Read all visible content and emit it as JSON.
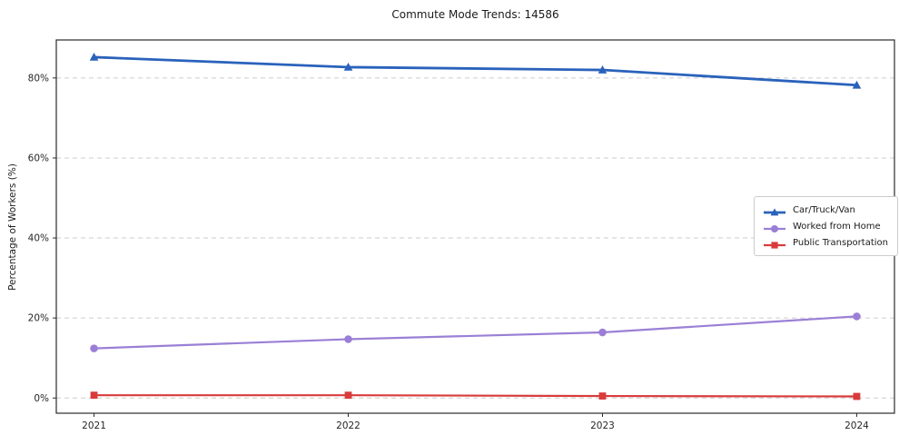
{
  "chart_data": {
    "type": "line",
    "title": "Commute Mode Trends: 14586",
    "xlabel": "",
    "ylabel": "Percentage of Workers (%)",
    "x": [
      2021,
      2022,
      2023,
      2024
    ],
    "yticks": [
      0,
      20,
      40,
      60,
      80
    ],
    "ytick_labels": [
      "0%",
      "20%",
      "40%",
      "60%",
      "80%"
    ],
    "ylim": [
      -3.8,
      89.5
    ],
    "grid": true,
    "grid_style": "dashed",
    "legend_position": "center-right",
    "series": [
      {
        "name": "Car/Truck/Van",
        "color": "#2a62bb",
        "marker": "triangle",
        "line_width": 2.8,
        "values": [
          85.2,
          82.7,
          82.0,
          78.2
        ]
      },
      {
        "name": "Worked from Home",
        "color": "#9b7fd6",
        "marker": "circle",
        "line_width": 2.2,
        "values": [
          12.4,
          14.7,
          16.4,
          20.4
        ]
      },
      {
        "name": "Public Transportation",
        "color": "#d93b3b",
        "marker": "square",
        "line_width": 2.2,
        "values": [
          0.7,
          0.7,
          0.5,
          0.4
        ]
      }
    ],
    "colors": {
      "grid": "#cccccc",
      "spine": "#2b2b2b",
      "tick_text": "#262626",
      "background": "#ffffff"
    }
  }
}
